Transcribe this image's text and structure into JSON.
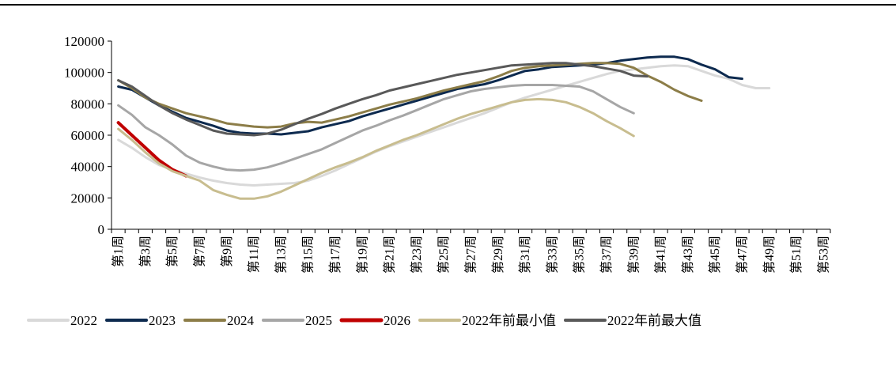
{
  "chart_data": {
    "type": "line",
    "title": "",
    "xlabel": "",
    "ylabel": "",
    "ylim": [
      0,
      120000
    ],
    "yticks": [
      0,
      20000,
      40000,
      60000,
      80000,
      100000,
      120000
    ],
    "y_tick_labels": [
      "0",
      "20000",
      "40000",
      "60000",
      "80000",
      "100000",
      "120000"
    ],
    "x": [
      1,
      2,
      3,
      4,
      5,
      6,
      7,
      8,
      9,
      10,
      11,
      12,
      13,
      14,
      15,
      16,
      17,
      18,
      19,
      20,
      21,
      22,
      23,
      24,
      25,
      26,
      27,
      28,
      29,
      30,
      31,
      32,
      33,
      34,
      35,
      36,
      37,
      38,
      39,
      40,
      41,
      42,
      43,
      44,
      45,
      46,
      47,
      48,
      49,
      50,
      51,
      52,
      53
    ],
    "x_tick_labels": [
      "第1周",
      "第3周",
      "第5周",
      "第7周",
      "第9周",
      "第11周",
      "第13周",
      "第15周",
      "第17周",
      "第19周",
      "第21周",
      "第23周",
      "第25周",
      "第27周",
      "第29周",
      "第31周",
      "第33周",
      "第35周",
      "第37周",
      "第39周",
      "第41周",
      "第43周",
      "第45周",
      "第47周",
      "第49周",
      "第51周",
      "第53周"
    ],
    "grid": false,
    "legend_position": "bottom",
    "series": [
      {
        "name": "2022",
        "color": "#d9d9d9",
        "width": 3,
        "values": [
          57000,
          52000,
          46000,
          41000,
          38000,
          35500,
          33000,
          31000,
          29500,
          28500,
          28000,
          28500,
          29000,
          29500,
          31000,
          34000,
          37500,
          41500,
          45500,
          49500,
          53000,
          56000,
          59000,
          62000,
          65000,
          68000,
          71000,
          74000,
          77500,
          81000,
          84000,
          86500,
          89000,
          91500,
          94000,
          96500,
          99000,
          101000,
          102000,
          103000,
          104000,
          104500,
          104000,
          101000,
          98000,
          96000,
          92000,
          90000,
          90000,
          null,
          null,
          null,
          null
        ]
      },
      {
        "name": "2023",
        "color": "#0d2a4f",
        "width": 3,
        "values": [
          91000,
          89000,
          84000,
          79000,
          75000,
          71000,
          68500,
          66000,
          63000,
          61500,
          61000,
          61000,
          60500,
          61500,
          62500,
          65000,
          67000,
          69000,
          72000,
          74500,
          77000,
          79500,
          82000,
          84500,
          87000,
          89500,
          91000,
          92500,
          95000,
          98000,
          101000,
          102000,
          103500,
          104000,
          104500,
          105000,
          106000,
          107500,
          108500,
          109500,
          110000,
          110000,
          108500,
          105000,
          102000,
          97000,
          96000,
          null,
          null,
          null,
          null,
          null,
          null
        ]
      },
      {
        "name": "2024",
        "color": "#8c7d48",
        "width": 3,
        "values": [
          95000,
          90000,
          84000,
          80000,
          77000,
          74000,
          72000,
          70000,
          67500,
          66500,
          65500,
          65000,
          65500,
          67500,
          68500,
          68000,
          70000,
          72000,
          74500,
          77000,
          79500,
          81500,
          83500,
          86000,
          88500,
          90500,
          92500,
          94500,
          97500,
          101000,
          103000,
          104000,
          104500,
          105000,
          105500,
          106000,
          106000,
          105500,
          103000,
          98000,
          94000,
          89000,
          85000,
          82000,
          null,
          null,
          null,
          null,
          null,
          null,
          null,
          null,
          null
        ]
      },
      {
        "name": "2025",
        "color": "#a6a6a6",
        "width": 3,
        "values": [
          79000,
          73000,
          65000,
          60000,
          54000,
          47000,
          42500,
          40000,
          38000,
          37500,
          38000,
          39500,
          42000,
          45000,
          48000,
          51000,
          55000,
          59000,
          63000,
          66000,
          69500,
          72500,
          76000,
          79500,
          83000,
          85500,
          88000,
          89500,
          90500,
          91500,
          92000,
          92000,
          92000,
          91500,
          91000,
          88000,
          83000,
          78000,
          74000,
          null,
          null,
          null,
          null,
          null,
          null,
          null,
          null,
          null,
          null,
          null,
          null,
          null,
          null
        ]
      },
      {
        "name": "2026",
        "color": "#c00000",
        "width": 4,
        "values": [
          68000,
          60000,
          52000,
          44000,
          38000,
          34000,
          null,
          null,
          null,
          null,
          null,
          null,
          null,
          null,
          null,
          null,
          null,
          null,
          null,
          null,
          null,
          null,
          null,
          null,
          null,
          null,
          null,
          null,
          null,
          null,
          null,
          null,
          null,
          null,
          null,
          null,
          null,
          null,
          null,
          null,
          null,
          null,
          null,
          null,
          null,
          null,
          null,
          null,
          null,
          null,
          null,
          null,
          null
        ]
      },
      {
        "name": "2022年前最小值",
        "color": "#c8bd8f",
        "width": 3,
        "values": [
          64000,
          57000,
          49000,
          42000,
          37000,
          34000,
          31000,
          25000,
          22000,
          19500,
          19500,
          21000,
          24000,
          28000,
          32000,
          36000,
          39500,
          42500,
          46000,
          50000,
          53500,
          57000,
          60000,
          63500,
          67000,
          70500,
          73500,
          76000,
          78500,
          81000,
          82500,
          83000,
          82500,
          81000,
          78000,
          74000,
          69000,
          64500,
          59500,
          null,
          null,
          null,
          null,
          null,
          null,
          null,
          null,
          null,
          null,
          null,
          null,
          null,
          null
        ]
      },
      {
        "name": "2022年前最大值",
        "color": "#595959",
        "width": 3,
        "values": [
          95000,
          91000,
          85000,
          79000,
          74000,
          70000,
          66500,
          63000,
          61000,
          60500,
          60000,
          61000,
          63500,
          67000,
          70500,
          73500,
          77000,
          80000,
          83000,
          85500,
          88500,
          90500,
          92500,
          94500,
          96500,
          98500,
          100000,
          101500,
          103000,
          104500,
          105000,
          105500,
          106000,
          106000,
          105000,
          104000,
          102500,
          101000,
          98000,
          97500,
          null,
          null,
          null,
          null,
          null,
          null,
          null,
          null,
          null,
          null,
          null,
          null,
          null
        ]
      }
    ]
  }
}
